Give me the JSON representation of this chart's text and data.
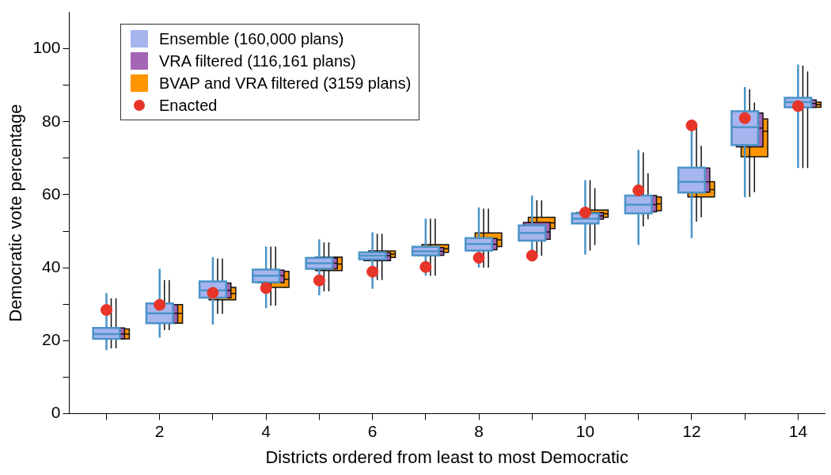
{
  "chart_data": {
    "type": "box",
    "xlabel": "Districts ordered from least to most Democratic",
    "ylabel": "Democratic vote percentage",
    "x": [
      1,
      2,
      3,
      4,
      5,
      6,
      7,
      8,
      9,
      10,
      11,
      12,
      13,
      14
    ],
    "xlim": [
      0.3,
      14.5
    ],
    "xticks": [
      {
        "value": 1,
        "label": null
      },
      2,
      {
        "value": 3,
        "label": null
      },
      4,
      {
        "value": 5,
        "label": null
      },
      6,
      {
        "value": 7,
        "label": null
      },
      8,
      {
        "value": 9,
        "label": null
      },
      10,
      {
        "value": 11,
        "label": null
      },
      12,
      {
        "value": 13,
        "label": null
      },
      14
    ],
    "ylim": [
      0,
      110
    ],
    "yticks": [
      0,
      {
        "value": 10,
        "label": null
      },
      20,
      {
        "value": 30,
        "label": null
      },
      40,
      {
        "value": 50,
        "label": null
      },
      60,
      {
        "value": 70,
        "label": null
      },
      80,
      {
        "value": 90,
        "label": null
      },
      100
    ],
    "grid": false,
    "legend": "top left",
    "marker": "circle",
    "series": [
      {
        "name": "Ensemble (160,000 plans)",
        "color": "#a6b5ee",
        "type": "box",
        "boxes": [
          {
            "low": 17.4,
            "q1": 20.5,
            "median": 21.8,
            "q3": 23.5,
            "high": 33
          },
          {
            "low": 20.8,
            "q1": 24.8,
            "median": 27.5,
            "q3": 30.2,
            "high": 39.7
          },
          {
            "low": 24.4,
            "q1": 31.8,
            "median": 33.8,
            "q3": 36.2,
            "high": 42.9
          },
          {
            "low": 28.9,
            "q1": 36,
            "median": 37.8,
            "q3": 39.5,
            "high": 45.8
          },
          {
            "low": 32.4,
            "q1": 39.7,
            "median": 41.2,
            "q3": 42.7,
            "high": 47.8
          },
          {
            "low": 34.2,
            "q1": 42.3,
            "median": 43.3,
            "q3": 44.2,
            "high": 49.7
          },
          {
            "low": 37.8,
            "q1": 43.4,
            "median": 44.5,
            "q3": 45.7,
            "high": 53.4
          },
          {
            "low": 40,
            "q1": 44.7,
            "median": 46.5,
            "q3": 48.1,
            "high": 56.5
          },
          {
            "low": 42.9,
            "q1": 47.4,
            "median": 49.5,
            "q3": 51.6,
            "high": 59.8
          },
          {
            "low": 43.6,
            "q1": 52.1,
            "median": 53.4,
            "q3": 54.9,
            "high": 64
          },
          {
            "low": 46.2,
            "q1": 54.9,
            "median": 57.3,
            "q3": 59.8,
            "high": 72.3
          },
          {
            "low": 48.1,
            "q1": 60.6,
            "median": 63.5,
            "q3": 67.4,
            "high": 78.1
          },
          {
            "low": 59.3,
            "q1": 73.6,
            "median": 78.5,
            "q3": 82.9,
            "high": 89.5
          },
          {
            "low": 67.3,
            "q1": 84,
            "median": 85.4,
            "q3": 86.6,
            "high": 95.7
          }
        ]
      },
      {
        "name": "VRA filtered (116,161 plans)",
        "color": "#a564b4",
        "type": "box",
        "boxes": [
          {
            "low": 17.9,
            "q1": 20.5,
            "median": 21.8,
            "q3": 23.5,
            "high": 31.6
          },
          {
            "low": 22.9,
            "q1": 24.8,
            "median": 27.5,
            "q3": 29.9,
            "high": 36.6
          },
          {
            "low": 27.3,
            "q1": 31.7,
            "median": 33.8,
            "q3": 35.8,
            "high": 42.5
          },
          {
            "low": 29.6,
            "q1": 35.9,
            "median": 37.8,
            "q3": 39.3,
            "high": 45.8
          },
          {
            "low": 33.5,
            "q1": 39.7,
            "median": 41.2,
            "q3": 42.7,
            "high": 46.9
          },
          {
            "low": 36.6,
            "q1": 41.9,
            "median": 43.3,
            "q3": 44.1,
            "high": 49.3
          },
          {
            "low": 37.8,
            "q1": 43.4,
            "median": 44.5,
            "q3": 45.5,
            "high": 53.4
          },
          {
            "low": 40,
            "q1": 44.9,
            "median": 46.4,
            "q3": 48,
            "high": 56.2
          },
          {
            "low": 43.3,
            "q1": 47.8,
            "median": 49.8,
            "q3": 52.4,
            "high": 58.5
          },
          {
            "low": 44.7,
            "q1": 53.3,
            "median": 54.2,
            "q3": 55.1,
            "high": 64
          },
          {
            "low": 51.3,
            "q1": 55.3,
            "median": 57.3,
            "q3": 59.8,
            "high": 71.6
          },
          {
            "low": 52.6,
            "q1": 60.7,
            "median": 63.5,
            "q3": 67.3,
            "high": 79.2
          },
          {
            "low": 59.4,
            "q1": 73.1,
            "median": 78.3,
            "q3": 82.4,
            "high": 88.9
          },
          {
            "low": 67.3,
            "q1": 84,
            "median": 85,
            "q3": 86,
            "high": 95.4
          }
        ]
      },
      {
        "name": "BVAP and VRA filtered (3159 plans)",
        "color": "#ff9500",
        "type": "box",
        "boxes": [
          {
            "low": 17.9,
            "q1": 20.5,
            "median": 21.8,
            "q3": 23.2,
            "high": 31.6
          },
          {
            "low": 22.9,
            "q1": 24.8,
            "median": 27.5,
            "q3": 29.9,
            "high": 36.6
          },
          {
            "low": 27.3,
            "q1": 31.2,
            "median": 32.9,
            "q3": 34.6,
            "high": 42.5
          },
          {
            "low": 29.6,
            "q1": 34.6,
            "median": 36.8,
            "q3": 39,
            "high": 45.8
          },
          {
            "low": 33.5,
            "q1": 39.2,
            "median": 41,
            "q3": 42.9,
            "high": 46.9
          },
          {
            "low": 36.6,
            "q1": 42.8,
            "median": 43.7,
            "q3": 44.6,
            "high": 49.3
          },
          {
            "low": 37.8,
            "q1": 44.2,
            "median": 45.2,
            "q3": 46.3,
            "high": 53.4
          },
          {
            "low": 40,
            "q1": 45.8,
            "median": 47.6,
            "q3": 49.5,
            "high": 56.2
          },
          {
            "low": 43.3,
            "q1": 50.7,
            "median": 52.3,
            "q3": 53.8,
            "high": 58.5
          },
          {
            "low": 46.2,
            "q1": 53.8,
            "median": 54.8,
            "q3": 55.8,
            "high": 61.8
          },
          {
            "low": 53.3,
            "q1": 55.6,
            "median": 57.5,
            "q3": 59.4,
            "high": 65.9
          },
          {
            "low": 53.8,
            "q1": 59.4,
            "median": 61.4,
            "q3": 63.6,
            "high": 73.4
          },
          {
            "low": 60.7,
            "q1": 70.4,
            "median": 77.4,
            "q3": 80.8,
            "high": 85.3
          },
          {
            "low": 67.3,
            "q1": 84,
            "median": 84.7,
            "q3": 85.4,
            "high": 93.8
          }
        ]
      },
      {
        "name": "Enacted",
        "color": "#e8352a",
        "type": "scatter",
        "values": [
          28.4,
          29.8,
          33.1,
          34.4,
          36.5,
          38.9,
          40.2,
          42.7,
          43.3,
          55.1,
          61.2,
          79,
          81,
          84.3
        ]
      }
    ]
  }
}
